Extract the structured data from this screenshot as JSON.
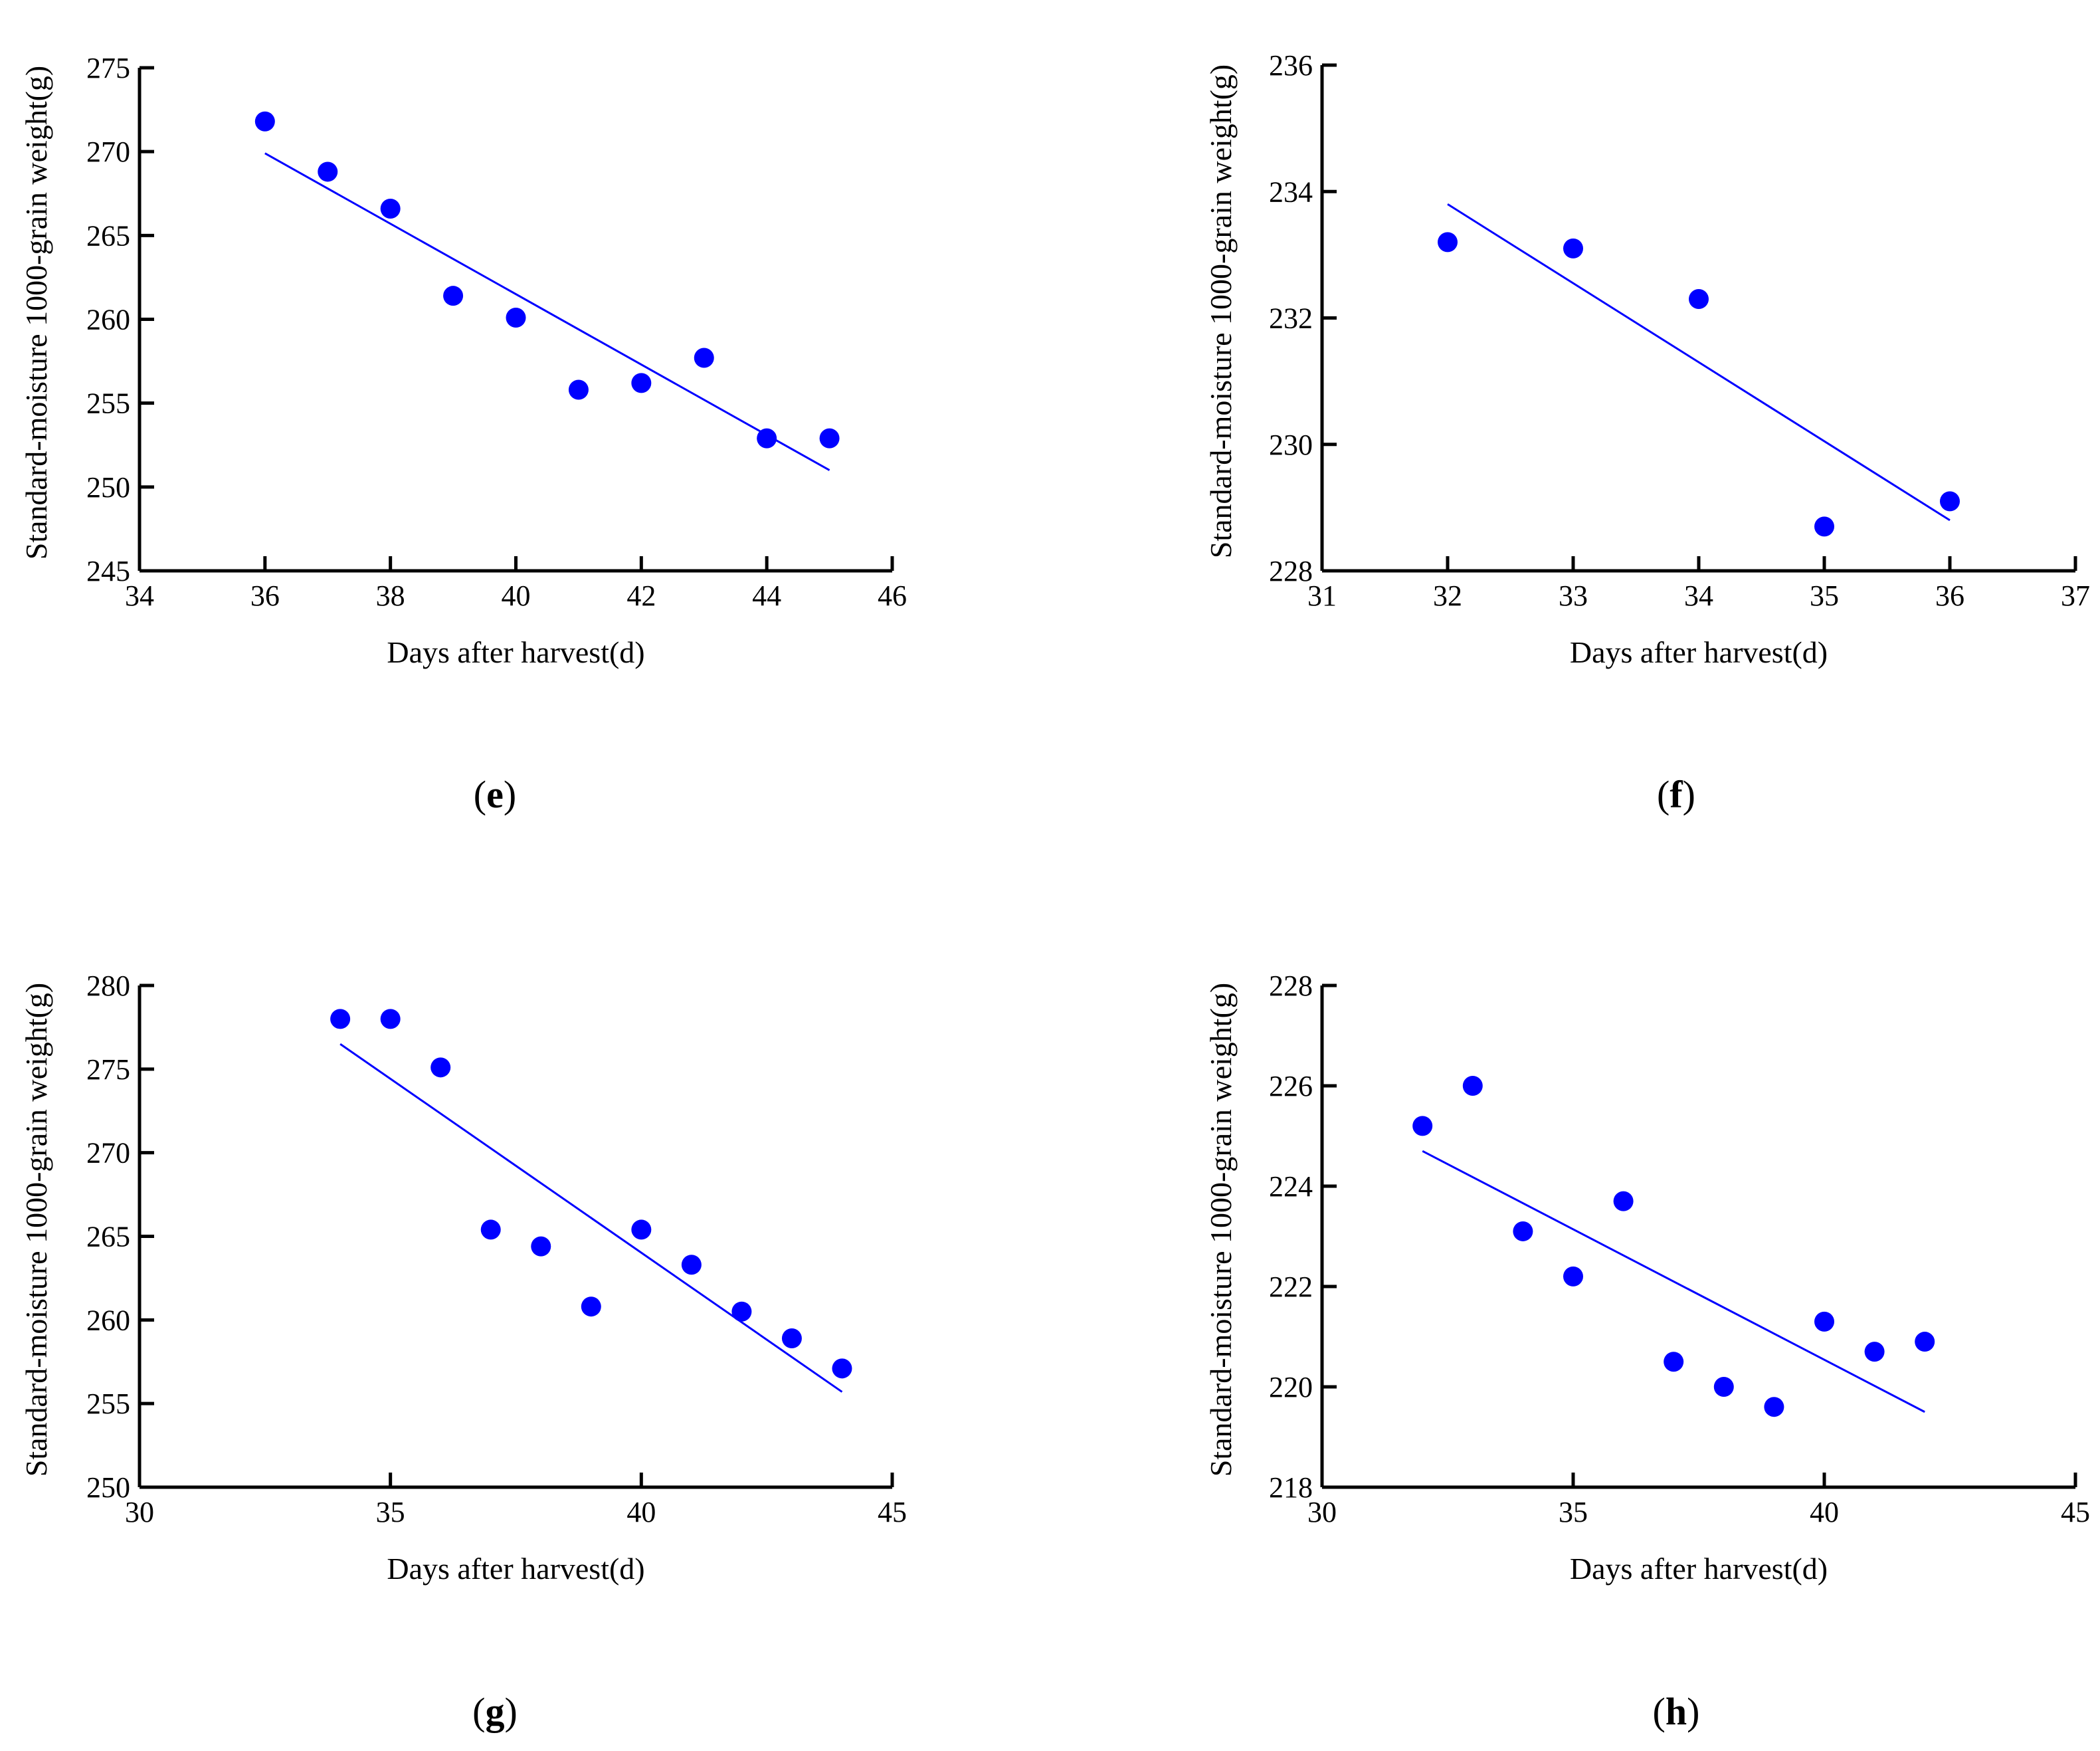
{
  "colors": {
    "marker": "#0000ff",
    "fit_line": "#0000ff",
    "axis": "#000000"
  },
  "chart_data": [
    {
      "id": "e",
      "type": "scatter",
      "panel_label": "e",
      "xlabel": "Days after harvest(d)",
      "ylabel": "Standard-moisture 1000-grain weight(g)",
      "xlim": [
        34,
        46
      ],
      "ylim": [
        245,
        275
      ],
      "xticks": [
        34,
        36,
        38,
        40,
        42,
        44,
        46
      ],
      "yticks": [
        245,
        250,
        255,
        260,
        265,
        270,
        275
      ],
      "points": {
        "x": [
          36,
          37,
          38,
          39,
          40,
          41,
          42,
          43,
          44,
          45
        ],
        "y": [
          271.8,
          268.8,
          266.6,
          261.4,
          260.1,
          255.8,
          256.2,
          257.7,
          252.9,
          252.9
        ]
      },
      "fit_line": {
        "x": [
          36,
          45
        ],
        "y": [
          269.9,
          251.0
        ]
      }
    },
    {
      "id": "f",
      "type": "scatter",
      "panel_label": "f",
      "xlabel": "Days after harvest(d)",
      "ylabel": "Standard-moisture 1000-grain weight(g)",
      "xlim": [
        31,
        37
      ],
      "ylim": [
        228,
        236
      ],
      "xticks": [
        31,
        32,
        33,
        34,
        35,
        36,
        37
      ],
      "yticks": [
        228,
        230,
        232,
        234,
        236
      ],
      "points": {
        "x": [
          32,
          33,
          34,
          35,
          36
        ],
        "y": [
          233.2,
          233.1,
          232.3,
          228.7,
          229.1
        ]
      },
      "fit_line": {
        "x": [
          32,
          36
        ],
        "y": [
          233.8,
          228.8
        ]
      }
    },
    {
      "id": "g",
      "type": "scatter",
      "panel_label": "g",
      "xlabel": "Days after harvest(d)",
      "ylabel": "Standard-moisture 1000-grain weight(g)",
      "xlim": [
        30,
        45
      ],
      "ylim": [
        250,
        280
      ],
      "xticks": [
        30,
        35,
        40,
        45
      ],
      "yticks": [
        250,
        255,
        260,
        265,
        270,
        275,
        280
      ],
      "points": {
        "x": [
          34,
          35,
          36,
          37,
          38,
          39,
          40,
          41,
          42,
          43,
          44
        ],
        "y": [
          278.0,
          278.0,
          275.1,
          265.4,
          264.4,
          260.8,
          265.4,
          263.3,
          260.5,
          258.9,
          257.1
        ]
      },
      "fit_line": {
        "x": [
          34,
          44
        ],
        "y": [
          276.5,
          255.7
        ]
      }
    },
    {
      "id": "h",
      "type": "scatter",
      "panel_label": "h",
      "xlabel": "Days after harvest(d)",
      "ylabel": "Standard-moisture 1000-grain weight(g)",
      "xlim": [
        30,
        45
      ],
      "ylim": [
        218,
        228
      ],
      "xticks": [
        30,
        35,
        40,
        45
      ],
      "yticks": [
        218,
        220,
        222,
        224,
        226,
        228
      ],
      "points": {
        "x": [
          32,
          33,
          34,
          35,
          36,
          37,
          38,
          39,
          40,
          41,
          42
        ],
        "y": [
          225.2,
          226.0,
          223.1,
          222.2,
          223.7,
          220.5,
          220.0,
          219.6,
          221.3,
          220.7,
          220.9
        ]
      },
      "fit_line": {
        "x": [
          32,
          42
        ],
        "y": [
          224.7,
          219.5
        ]
      }
    }
  ]
}
